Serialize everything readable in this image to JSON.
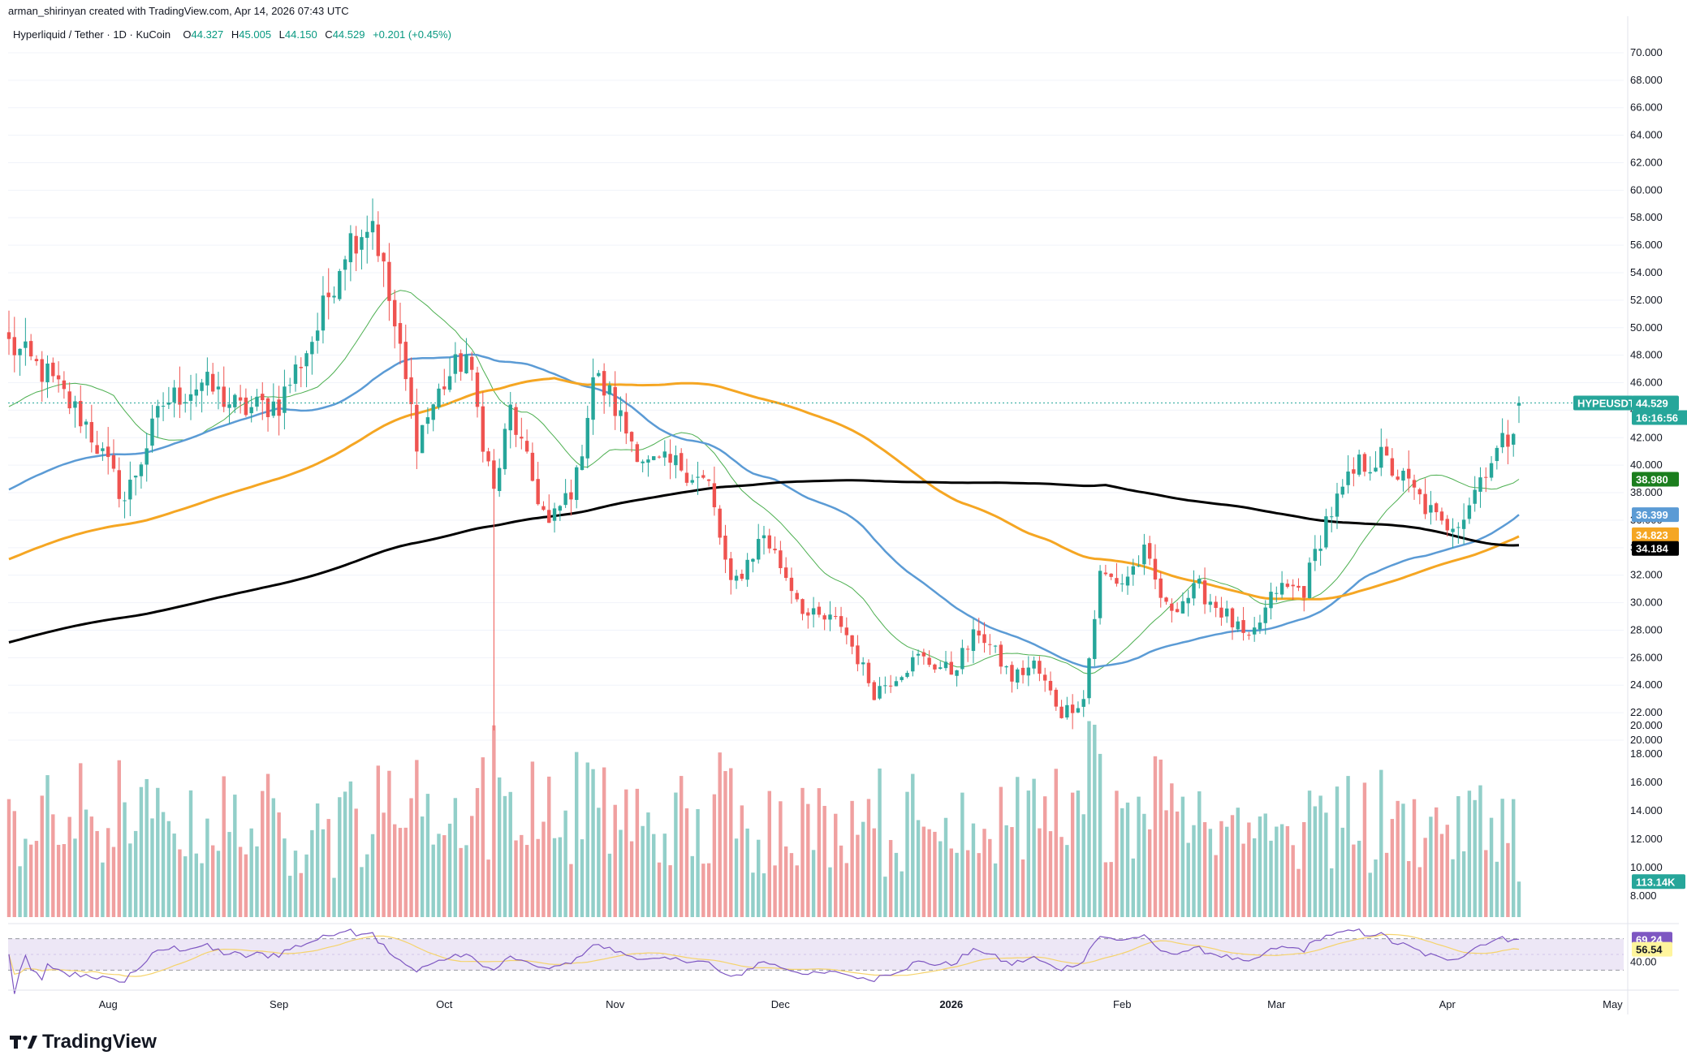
{
  "header": {
    "credit": "arman_shirinyan created with TradingView.com, Apr 14, 2026 07:43 UTC",
    "symbol": "Hyperliquid / Tether · 1D · KuCoin",
    "ohlc": [
      {
        "k": "O",
        "v": "44.327"
      },
      {
        "k": "H",
        "v": "45.005"
      },
      {
        "k": "L",
        "v": "44.150"
      },
      {
        "k": "C",
        "v": "44.529"
      },
      {
        "k": "",
        "v": "+0.201 (+0.45%)"
      }
    ]
  },
  "brand": {
    "name": "TradingView"
  },
  "colors": {
    "up": "#26a69a",
    "down": "#ef5350",
    "vol_up": "#92cfc9",
    "vol_down": "#f0a0a0",
    "ma20": "#4caf50",
    "ma50": "#5b9bd5",
    "ma100": "#f5a623",
    "ma200": "#000000",
    "rsi": "#7e57c2",
    "rsi_ma": "#f5d36b",
    "rsi_band": "#ede7f6",
    "grid": "#f0f3fa"
  },
  "chart_data": {
    "type": "candlestick",
    "title": "Hyperliquid / Tether · 1D · KuCoin",
    "x_axis": {
      "tick_labels": [
        "Aug",
        "Sep",
        "Oct",
        "Nov",
        "Dec",
        "2026",
        "Feb",
        "Mar",
        "Apr",
        "May"
      ]
    },
    "y_axis": {
      "range": [
        20,
        71
      ],
      "scale": "linear",
      "tick_labels": [
        "20.000",
        "22.000",
        "24.000",
        "26.000",
        "28.000",
        "30.000",
        "32.000",
        "34.000",
        "36.000",
        "38.000",
        "40.000",
        "42.000",
        "44.000",
        "46.000",
        "48.000",
        "50.000",
        "52.000",
        "54.000",
        "56.000",
        "58.000",
        "60.000",
        "62.000",
        "64.000",
        "66.000",
        "68.000",
        "70.000"
      ]
    },
    "price_anchors": [
      [
        "2025-07-14",
        48.8
      ],
      [
        "2025-07-21",
        46.5
      ],
      [
        "2025-07-28",
        43.0
      ],
      [
        "2025-08-04",
        37.5
      ],
      [
        "2025-08-11",
        44.5
      ],
      [
        "2025-08-18",
        46.0
      ],
      [
        "2025-08-25",
        44.0
      ],
      [
        "2025-09-01",
        44.5
      ],
      [
        "2025-09-08",
        50.0
      ],
      [
        "2025-09-13",
        56.0
      ],
      [
        "2025-09-18",
        58.0
      ],
      [
        "2025-09-22",
        50.0
      ],
      [
        "2025-09-26",
        42.0
      ],
      [
        "2025-10-01",
        46.0
      ],
      [
        "2025-10-05",
        48.0
      ],
      [
        "2025-10-10",
        38.0
      ],
      [
        "2025-10-13",
        44.0
      ],
      [
        "2025-10-16",
        40.0
      ],
      [
        "2025-10-20",
        35.5
      ],
      [
        "2025-10-25",
        39.0
      ],
      [
        "2025-10-28",
        46.5
      ],
      [
        "2025-10-31",
        45.0
      ],
      [
        "2025-11-03",
        42.5
      ],
      [
        "2025-11-07",
        40.0
      ],
      [
        "2025-11-13",
        40.0
      ],
      [
        "2025-11-18",
        38.5
      ],
      [
        "2025-11-22",
        31.0
      ],
      [
        "2025-11-28",
        35.0
      ],
      [
        "2025-12-02",
        32.0
      ],
      [
        "2025-12-06",
        29.0
      ],
      [
        "2025-12-12",
        28.5
      ],
      [
        "2025-12-18",
        23.5
      ],
      [
        "2025-12-26",
        26.0
      ],
      [
        "2026-01-01",
        25.0
      ],
      [
        "2026-01-06",
        28.0
      ],
      [
        "2026-01-12",
        24.5
      ],
      [
        "2026-01-16",
        25.5
      ],
      [
        "2026-01-21",
        22.0
      ],
      [
        "2026-01-25",
        23.0
      ],
      [
        "2026-01-28",
        32.0
      ],
      [
        "2026-02-01",
        31.5
      ],
      [
        "2026-02-05",
        33.5
      ],
      [
        "2026-02-09",
        29.5
      ],
      [
        "2026-02-15",
        31.0
      ],
      [
        "2026-02-20",
        29.0
      ],
      [
        "2026-02-24",
        27.0
      ],
      [
        "2026-03-01",
        31.0
      ],
      [
        "2026-03-06",
        31.0
      ],
      [
        "2026-03-10",
        36.0
      ],
      [
        "2026-03-16",
        40.0
      ],
      [
        "2026-03-20",
        40.5
      ],
      [
        "2026-03-25",
        38.5
      ],
      [
        "2026-03-31",
        35.5
      ],
      [
        "2026-04-04",
        36.5
      ],
      [
        "2026-04-08",
        40.0
      ],
      [
        "2026-04-12",
        42.0
      ],
      [
        "2026-04-14",
        44.53
      ]
    ],
    "notable_extremes": [
      {
        "date": "2025-09-18",
        "high": 59.4
      },
      {
        "date": "2025-10-10",
        "low": 20.7
      },
      {
        "date": "2026-01-23",
        "low": 20.8
      },
      {
        "date": "2026-04-14",
        "high": 45.005
      }
    ],
    "last_candle": {
      "date": "2026-04-14",
      "open": 44.327,
      "high": 45.005,
      "low": 44.15,
      "close": 44.529
    },
    "moving_averages": [
      {
        "period": 20,
        "last": 38.98
      },
      {
        "period": 50,
        "last": 36.399
      },
      {
        "period": 100,
        "last": 34.823
      },
      {
        "period": 200,
        "last": 34.184
      }
    ],
    "volume": {
      "last": "113.14K",
      "tick_labels": [
        "8.000",
        "10.000",
        "12.000",
        "14.000",
        "16.000",
        "18.000",
        "20.000"
      ],
      "range": [
        6.5,
        20.5
      ]
    },
    "rsi": {
      "last": 69.24,
      "ma_last": 56.54,
      "tick_labels": [
        "40.00"
      ],
      "bands": [
        70,
        30
      ]
    },
    "price_labels": {
      "symbol_badge": "HYPEUSDT",
      "last_price": "44.529",
      "countdown": "16:16:56",
      "ma20": "38.980",
      "ma50": "36.399",
      "ma100": "34.823",
      "ma200": "34.184",
      "volume": "113.14K",
      "rsi": "69.24",
      "rsi_ma": "56.54"
    },
    "grid": true,
    "legend": "none"
  }
}
